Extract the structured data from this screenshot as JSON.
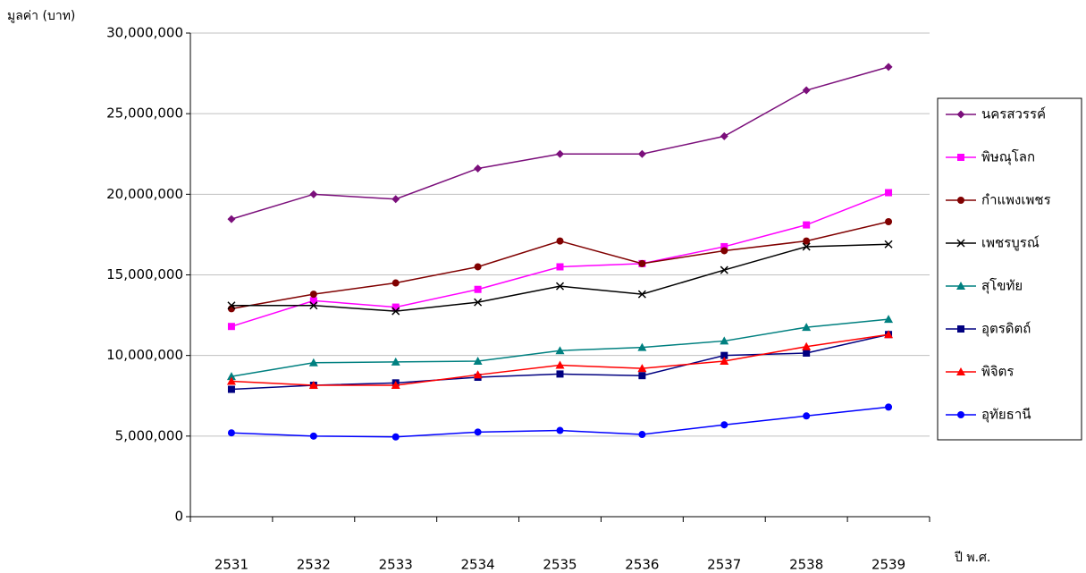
{
  "chart_data": {
    "type": "line",
    "y_label": "มูลค่า (บาท)",
    "x_label": "ปี พ.ศ.",
    "categories": [
      "2531",
      "2532",
      "2533",
      "2534",
      "2535",
      "2536",
      "2537",
      "2538",
      "2539"
    ],
    "ylim": [
      0,
      30000000
    ],
    "yticks": [
      0,
      {
        "value": 5000000,
        "label": "5,000,000"
      },
      {
        "value": 10000000,
        "label": "10,000,000"
      },
      {
        "value": 15000000,
        "label": "15,000,000"
      },
      {
        "value": 20000000,
        "label": "20,000,000"
      },
      {
        "value": 25000000,
        "label": "25,000,000"
      },
      {
        "value": 30000000,
        "label": "30,000,000"
      }
    ],
    "grid": true,
    "legend": "right",
    "series": [
      {
        "name": "นครสวรรค์",
        "color": "#7b0f7b",
        "marker": "diamond",
        "values": [
          18460000,
          20000000,
          19700000,
          21600000,
          22500000,
          22500000,
          23600000,
          26450000,
          27900000
        ]
      },
      {
        "name": "พิษณุโลก",
        "color": "#ff00ff",
        "marker": "square",
        "values": [
          11800000,
          13400000,
          13000000,
          14100000,
          15500000,
          15700000,
          16750000,
          18100000,
          20100000
        ]
      },
      {
        "name": "กำแพงเพชร",
        "color": "#800000",
        "marker": "circle",
        "values": [
          12900000,
          13800000,
          14500000,
          15500000,
          17100000,
          15700000,
          16500000,
          17100000,
          18300000
        ]
      },
      {
        "name": "เพชรบูรณ์",
        "color": "#000000",
        "marker": "x",
        "values": [
          13100000,
          13100000,
          12750000,
          13300000,
          14300000,
          13800000,
          15300000,
          16750000,
          16900000
        ]
      },
      {
        "name": "สุโขทัย",
        "color": "#008080",
        "marker": "triangle",
        "values": [
          8700000,
          9550000,
          9600000,
          9650000,
          10300000,
          10500000,
          10900000,
          11750000,
          12250000
        ]
      },
      {
        "name": "อุตรดิตถ์",
        "color": "#000080",
        "marker": "square",
        "values": [
          7900000,
          8150000,
          8300000,
          8650000,
          8850000,
          8750000,
          10000000,
          10150000,
          11300000
        ]
      },
      {
        "name": "พิจิตร",
        "color": "#ff0000",
        "marker": "triangle",
        "values": [
          8400000,
          8150000,
          8150000,
          8800000,
          9400000,
          9200000,
          9650000,
          10550000,
          11300000
        ]
      },
      {
        "name": "อุทัยธานี",
        "color": "#0000ff",
        "marker": "circle",
        "values": [
          5200000,
          5000000,
          4950000,
          5250000,
          5350000,
          5100000,
          5700000,
          6250000,
          6800000
        ]
      }
    ]
  }
}
